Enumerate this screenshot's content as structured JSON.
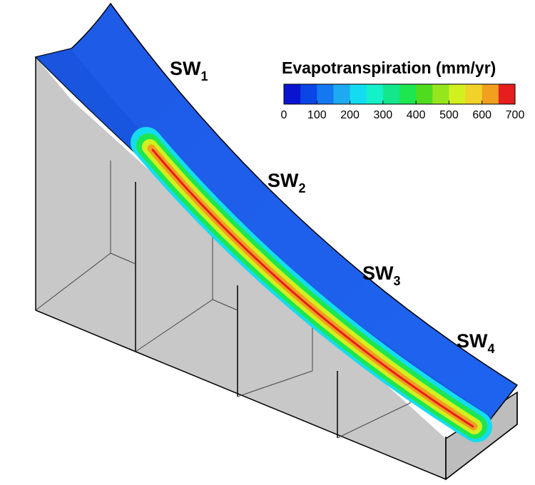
{
  "title": "Evapotranspiration (mm/yr)",
  "labels": [
    {
      "main": "SW",
      "sub": "1"
    },
    {
      "main": "SW",
      "sub": "2"
    },
    {
      "main": "SW",
      "sub": "3"
    },
    {
      "main": "SW",
      "sub": "4"
    }
  ],
  "colorbar": {
    "range": [
      0,
      700
    ],
    "ticks": [
      0,
      100,
      200,
      300,
      400,
      500,
      600,
      700
    ],
    "colors": [
      "#0a14d0",
      "#0a46e6",
      "#1478f0",
      "#1eaaf0",
      "#14dcf0",
      "#14f0c8",
      "#14e68c",
      "#1ee650",
      "#50dc1e",
      "#96e61e",
      "#d2f01e",
      "#f0d228",
      "#f0a01e",
      "#e61e1e"
    ]
  }
}
